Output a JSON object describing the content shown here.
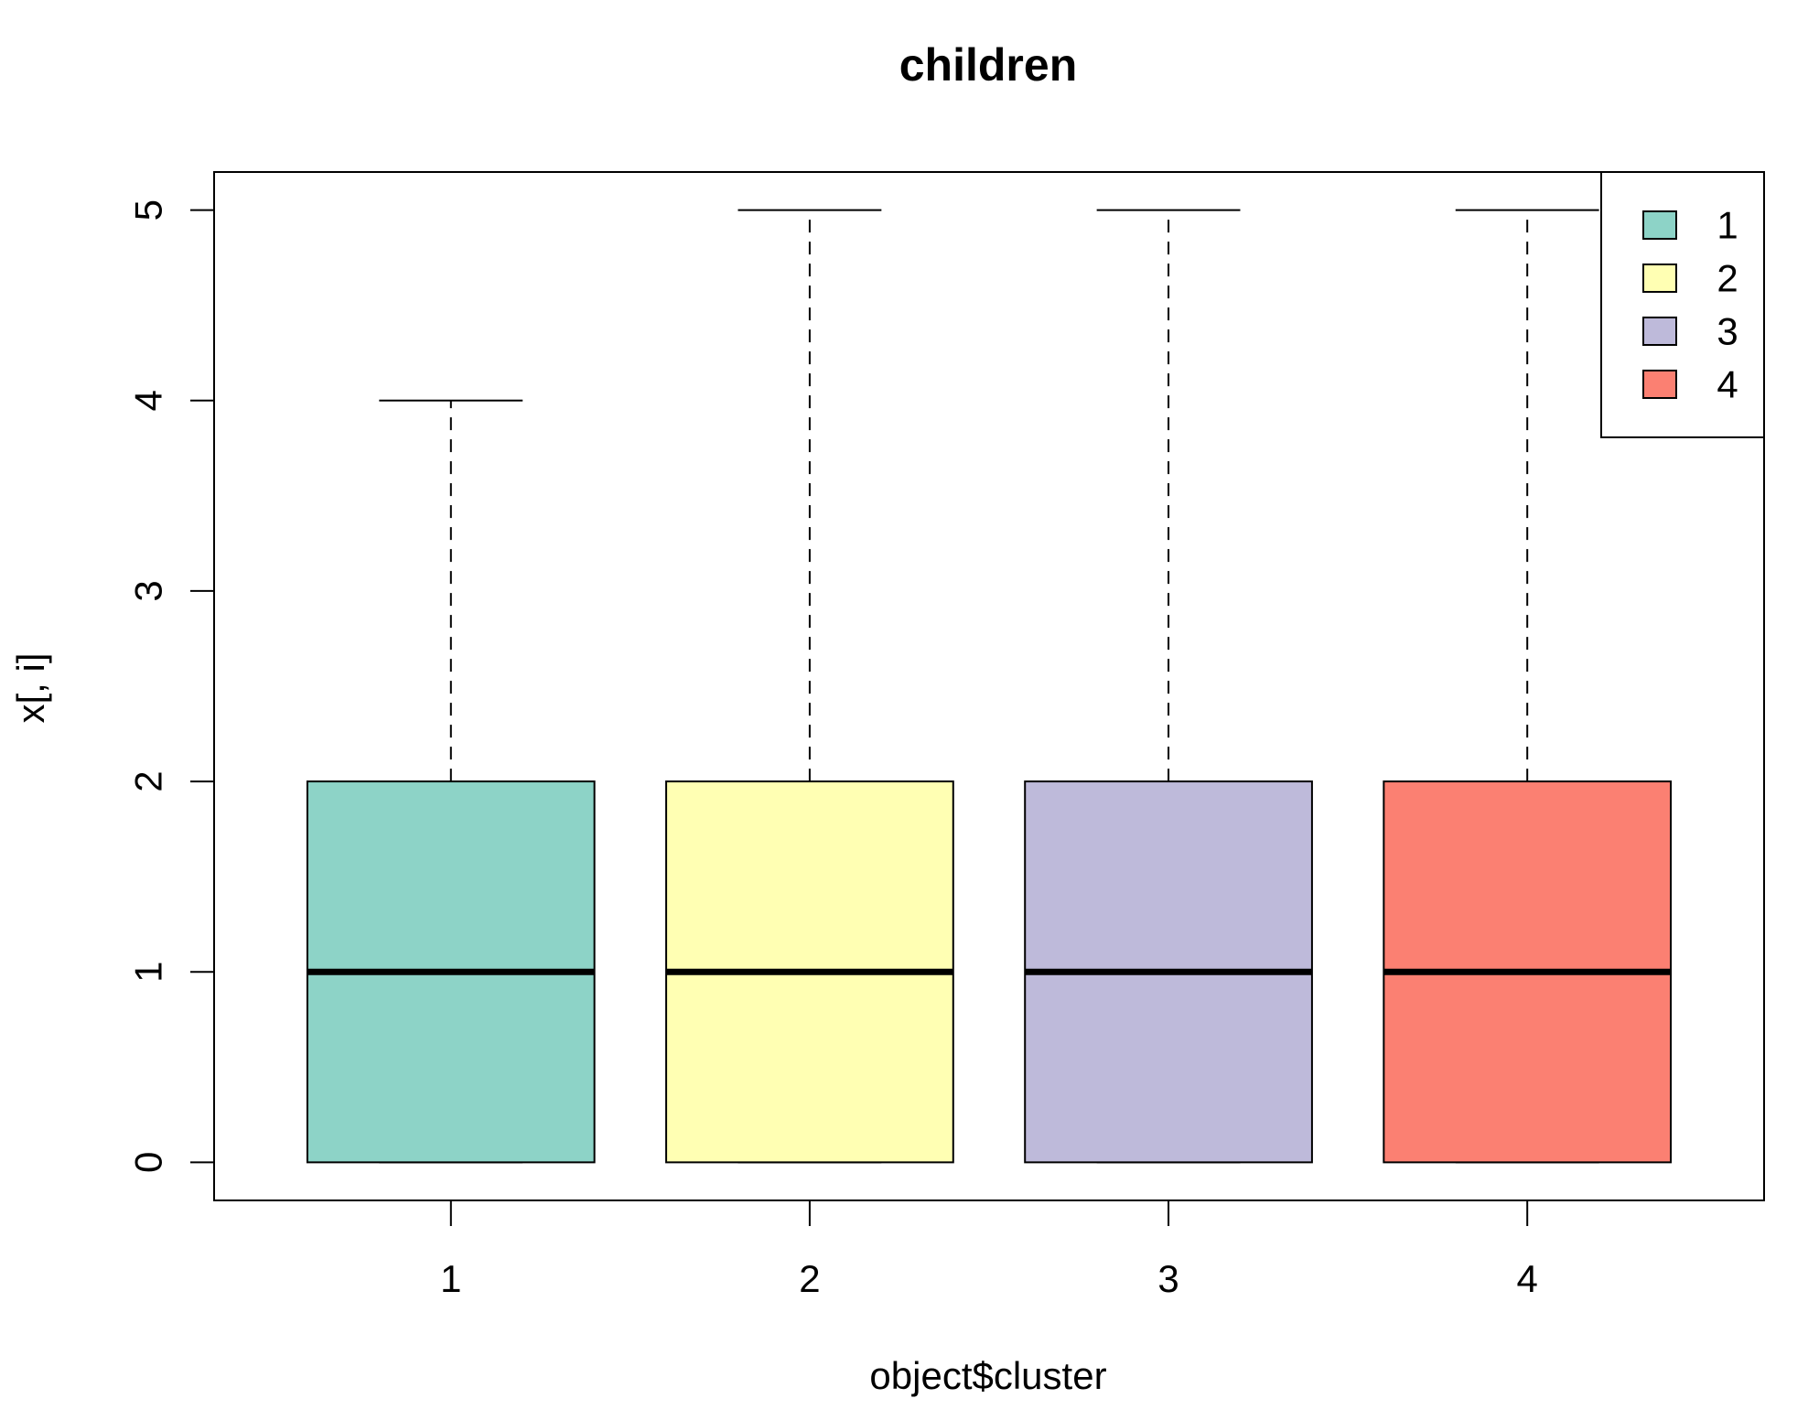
{
  "chart_data": {
    "type": "boxplot",
    "title": "children",
    "xlabel": "object$cluster",
    "ylabel": "x[, i]",
    "categories": [
      "1",
      "2",
      "3",
      "4"
    ],
    "y_ticks": [
      "0",
      "1",
      "2",
      "3",
      "4",
      "5"
    ],
    "ylim": [
      -0.2,
      5.2
    ],
    "series": [
      {
        "name": "1",
        "min": 0,
        "q1": 0,
        "median": 1,
        "q3": 2,
        "max": 4,
        "color": "#8DD3C7"
      },
      {
        "name": "2",
        "min": 0,
        "q1": 0,
        "median": 1,
        "q3": 2,
        "max": 5,
        "color": "#FFFFB3"
      },
      {
        "name": "3",
        "min": 0,
        "q1": 0,
        "median": 1,
        "q3": 2,
        "max": 5,
        "color": "#BEBADA"
      },
      {
        "name": "4",
        "min": 0,
        "q1": 0,
        "median": 1,
        "q3": 2,
        "max": 5,
        "color": "#FB8072"
      }
    ],
    "legend": {
      "placement": "top-right",
      "entries": [
        "1",
        "2",
        "3",
        "4"
      ]
    },
    "grid": false
  }
}
